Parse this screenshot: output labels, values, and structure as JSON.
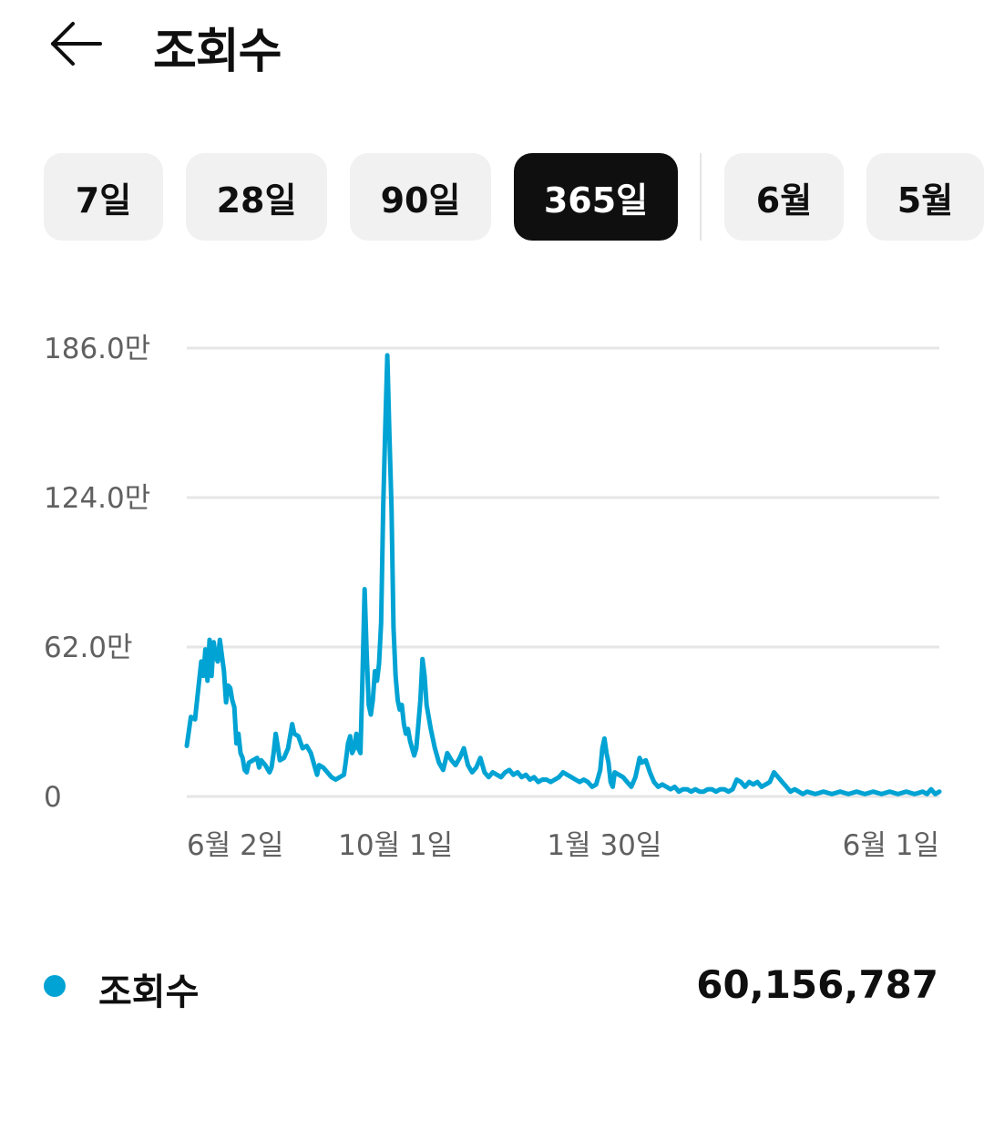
{
  "header": {
    "title": "조회수",
    "back_icon": "arrow-left-icon"
  },
  "chips": [
    {
      "label": "7일",
      "selected": false
    },
    {
      "label": "28일",
      "selected": false
    },
    {
      "label": "90일",
      "selected": false
    },
    {
      "label": "365일",
      "selected": true
    },
    {
      "label": "6월",
      "selected": false
    },
    {
      "label": "5월",
      "selected": false
    }
  ],
  "colors": {
    "accent": "#00a3d3",
    "chip_bg": "#f1f1f1",
    "chip_selected_bg": "#0f0f0f",
    "grid": "#e6e6e6",
    "axis_text": "#606060"
  },
  "chart_data": {
    "type": "line",
    "ylim": [
      0,
      1860000
    ],
    "y_ticks": [
      {
        "value": 1860000,
        "label": "186.0만"
      },
      {
        "value": 1240000,
        "label": "124.0만"
      },
      {
        "value": 620000,
        "label": "62.0만"
      },
      {
        "value": 0,
        "label": "0"
      }
    ],
    "x_ticks": [
      {
        "index": 20,
        "label": "6월 2일"
      },
      {
        "index": 101,
        "label": "10월 1일"
      },
      {
        "index": 202,
        "label": "1월 30일"
      },
      {
        "index": 364,
        "label": "6월 1일"
      }
    ],
    "grid": true,
    "series": [
      {
        "name": "조회수",
        "color": "#00a3d3",
        "points": [
          [
            0,
            210000
          ],
          [
            2,
            330000
          ],
          [
            4,
            320000
          ],
          [
            5,
            400000
          ],
          [
            6,
            480000
          ],
          [
            7,
            560000
          ],
          [
            8,
            500000
          ],
          [
            9,
            610000
          ],
          [
            10,
            480000
          ],
          [
            11,
            650000
          ],
          [
            12,
            500000
          ],
          [
            13,
            640000
          ],
          [
            14,
            580000
          ],
          [
            15,
            560000
          ],
          [
            16,
            650000
          ],
          [
            18,
            520000
          ],
          [
            19,
            390000
          ],
          [
            20,
            460000
          ],
          [
            21,
            450000
          ],
          [
            22,
            400000
          ],
          [
            23,
            370000
          ],
          [
            24,
            220000
          ],
          [
            25,
            260000
          ],
          [
            26,
            180000
          ],
          [
            27,
            160000
          ],
          [
            28,
            110000
          ],
          [
            29,
            100000
          ],
          [
            30,
            140000
          ],
          [
            32,
            150000
          ],
          [
            34,
            160000
          ],
          [
            35,
            120000
          ],
          [
            36,
            150000
          ],
          [
            38,
            130000
          ],
          [
            40,
            100000
          ],
          [
            41,
            120000
          ],
          [
            42,
            180000
          ],
          [
            43,
            260000
          ],
          [
            44,
            210000
          ],
          [
            45,
            150000
          ],
          [
            47,
            160000
          ],
          [
            49,
            200000
          ],
          [
            51,
            300000
          ],
          [
            52,
            260000
          ],
          [
            54,
            250000
          ],
          [
            56,
            200000
          ],
          [
            58,
            210000
          ],
          [
            60,
            180000
          ],
          [
            62,
            120000
          ],
          [
            63,
            90000
          ],
          [
            64,
            130000
          ],
          [
            66,
            120000
          ],
          [
            68,
            100000
          ],
          [
            70,
            80000
          ],
          [
            72,
            70000
          ],
          [
            74,
            80000
          ],
          [
            76,
            90000
          ],
          [
            77,
            150000
          ],
          [
            78,
            220000
          ],
          [
            79,
            250000
          ],
          [
            80,
            180000
          ],
          [
            81,
            200000
          ],
          [
            82,
            260000
          ],
          [
            83,
            200000
          ],
          [
            84,
            180000
          ],
          [
            85,
            500000
          ],
          [
            86,
            860000
          ],
          [
            87,
            600000
          ],
          [
            88,
            380000
          ],
          [
            89,
            340000
          ],
          [
            90,
            400000
          ],
          [
            91,
            520000
          ],
          [
            92,
            480000
          ],
          [
            93,
            550000
          ],
          [
            94,
            720000
          ],
          [
            95,
            1200000
          ],
          [
            96,
            1520000
          ],
          [
            97,
            1830000
          ],
          [
            98,
            1500000
          ],
          [
            99,
            1200000
          ],
          [
            100,
            700000
          ],
          [
            101,
            500000
          ],
          [
            102,
            400000
          ],
          [
            103,
            360000
          ],
          [
            104,
            380000
          ],
          [
            105,
            300000
          ],
          [
            106,
            260000
          ],
          [
            107,
            280000
          ],
          [
            108,
            230000
          ],
          [
            109,
            200000
          ],
          [
            110,
            170000
          ],
          [
            111,
            200000
          ],
          [
            112,
            300000
          ],
          [
            113,
            400000
          ],
          [
            114,
            570000
          ],
          [
            115,
            500000
          ],
          [
            116,
            380000
          ],
          [
            118,
            280000
          ],
          [
            120,
            200000
          ],
          [
            121,
            170000
          ],
          [
            122,
            140000
          ],
          [
            124,
            110000
          ],
          [
            126,
            180000
          ],
          [
            128,
            150000
          ],
          [
            130,
            130000
          ],
          [
            132,
            160000
          ],
          [
            134,
            200000
          ],
          [
            136,
            130000
          ],
          [
            138,
            100000
          ],
          [
            140,
            120000
          ],
          [
            142,
            160000
          ],
          [
            144,
            100000
          ],
          [
            146,
            80000
          ],
          [
            148,
            100000
          ],
          [
            150,
            90000
          ],
          [
            152,
            80000
          ],
          [
            154,
            100000
          ],
          [
            156,
            110000
          ],
          [
            158,
            90000
          ],
          [
            160,
            100000
          ],
          [
            162,
            80000
          ],
          [
            164,
            90000
          ],
          [
            166,
            70000
          ],
          [
            168,
            80000
          ],
          [
            170,
            60000
          ],
          [
            172,
            70000
          ],
          [
            174,
            70000
          ],
          [
            176,
            60000
          ],
          [
            178,
            70000
          ],
          [
            180,
            80000
          ],
          [
            182,
            100000
          ],
          [
            184,
            90000
          ],
          [
            186,
            80000
          ],
          [
            188,
            70000
          ],
          [
            190,
            60000
          ],
          [
            192,
            70000
          ],
          [
            194,
            60000
          ],
          [
            196,
            40000
          ],
          [
            198,
            50000
          ],
          [
            200,
            110000
          ],
          [
            201,
            200000
          ],
          [
            202,
            240000
          ],
          [
            203,
            180000
          ],
          [
            204,
            140000
          ],
          [
            205,
            60000
          ],
          [
            206,
            40000
          ],
          [
            207,
            100000
          ],
          [
            209,
            90000
          ],
          [
            211,
            80000
          ],
          [
            213,
            60000
          ],
          [
            215,
            40000
          ],
          [
            217,
            80000
          ],
          [
            218,
            120000
          ],
          [
            219,
            160000
          ],
          [
            220,
            140000
          ],
          [
            222,
            150000
          ],
          [
            224,
            100000
          ],
          [
            226,
            60000
          ],
          [
            228,
            40000
          ],
          [
            230,
            50000
          ],
          [
            232,
            40000
          ],
          [
            234,
            30000
          ],
          [
            236,
            40000
          ],
          [
            238,
            20000
          ],
          [
            240,
            30000
          ],
          [
            242,
            30000
          ],
          [
            244,
            20000
          ],
          [
            246,
            30000
          ],
          [
            248,
            20000
          ],
          [
            250,
            20000
          ],
          [
            252,
            30000
          ],
          [
            254,
            30000
          ],
          [
            256,
            20000
          ],
          [
            258,
            30000
          ],
          [
            260,
            30000
          ],
          [
            262,
            20000
          ],
          [
            264,
            30000
          ],
          [
            266,
            70000
          ],
          [
            268,
            60000
          ],
          [
            270,
            40000
          ],
          [
            272,
            60000
          ],
          [
            274,
            50000
          ],
          [
            276,
            60000
          ],
          [
            278,
            40000
          ],
          [
            280,
            50000
          ],
          [
            282,
            60000
          ],
          [
            284,
            100000
          ],
          [
            286,
            80000
          ],
          [
            288,
            60000
          ],
          [
            290,
            40000
          ],
          [
            292,
            20000
          ],
          [
            294,
            30000
          ],
          [
            296,
            20000
          ],
          [
            298,
            10000
          ],
          [
            300,
            20000
          ],
          [
            304,
            10000
          ],
          [
            308,
            20000
          ],
          [
            312,
            10000
          ],
          [
            316,
            20000
          ],
          [
            320,
            10000
          ],
          [
            324,
            20000
          ],
          [
            328,
            10000
          ],
          [
            332,
            20000
          ],
          [
            336,
            10000
          ],
          [
            340,
            20000
          ],
          [
            344,
            10000
          ],
          [
            348,
            20000
          ],
          [
            352,
            10000
          ],
          [
            356,
            20000
          ],
          [
            358,
            10000
          ],
          [
            360,
            30000
          ],
          [
            362,
            10000
          ],
          [
            364,
            20000
          ]
        ]
      }
    ]
  },
  "legend": {
    "label": "조회수",
    "value": "60,156,787"
  }
}
